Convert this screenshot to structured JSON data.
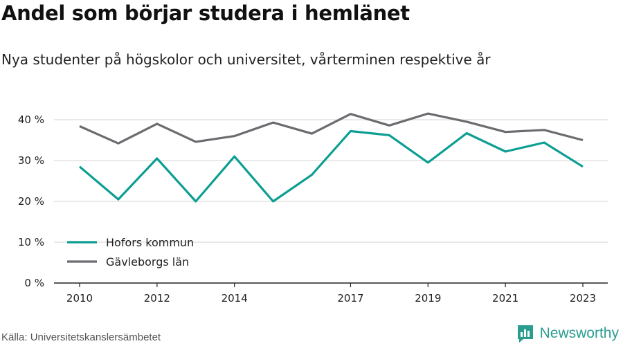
{
  "title": "Andel som börjar studera i hemlänet",
  "subtitle": "Nya studenter på högskolor och universitet, vårterminen respektive år",
  "source": "Källa: Universitetskanslersämbetet",
  "brand": {
    "name": "Newsworthy",
    "icon": "newsworthy-logo-icon",
    "color": "#2a9d8f"
  },
  "chart_data": {
    "type": "line",
    "x": [
      2010,
      2011,
      2012,
      2013,
      2014,
      2015,
      2016,
      2017,
      2018,
      2019,
      2020,
      2021,
      2022,
      2023
    ],
    "x_tick_labels": [
      "2010",
      "2012",
      "2014",
      "2017",
      "2019",
      "2021",
      "2023"
    ],
    "y_ticks": [
      0,
      10,
      20,
      30,
      40
    ],
    "y_tick_labels": [
      "0 %",
      "10 %",
      "20 %",
      "30 %",
      "40 %"
    ],
    "ylim": [
      0,
      42
    ],
    "grid": true,
    "legend_position": "bottom-left",
    "series": [
      {
        "name": "Hofors kommun",
        "color": "#0d9e93",
        "values": [
          28.5,
          20.5,
          30.5,
          20.0,
          31.0,
          20.0,
          26.5,
          37.2,
          36.2,
          29.5,
          36.7,
          32.2,
          34.4,
          28.5
        ]
      },
      {
        "name": "Gävleborgs län",
        "color": "#6b6b70",
        "values": [
          38.4,
          34.2,
          39.0,
          34.6,
          36.0,
          39.3,
          36.6,
          41.4,
          38.6,
          41.5,
          39.5,
          37.0,
          37.5,
          35.0
        ]
      }
    ]
  }
}
